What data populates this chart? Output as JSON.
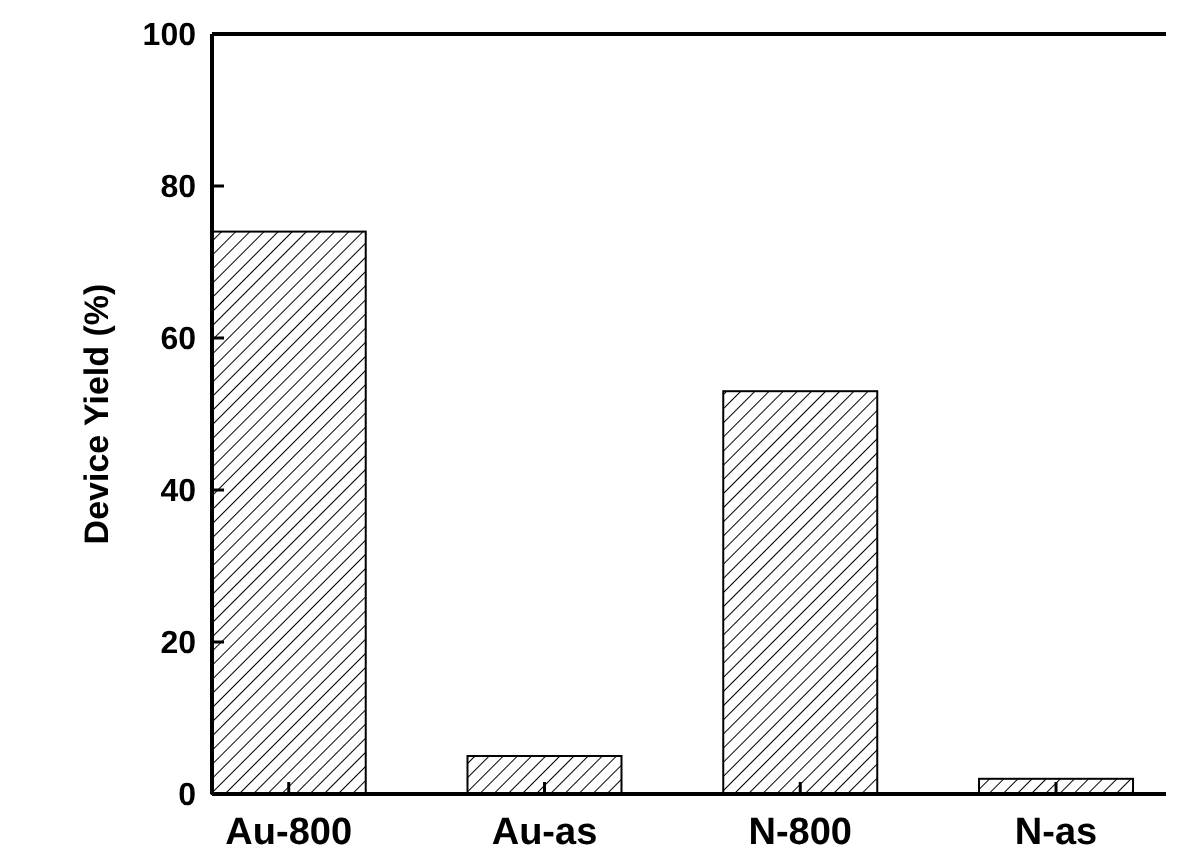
{
  "chart_data": {
    "type": "bar",
    "ylabel": "Device Yield (%)",
    "categories": [
      "Au-800",
      "Au-as",
      "N-800",
      "N-as"
    ],
    "values": [
      74,
      5,
      53,
      2
    ],
    "color": "#000000",
    "ylim": [
      0,
      100
    ],
    "yticks": [
      0,
      20,
      40,
      60,
      80,
      100
    ],
    "grid": false
  }
}
